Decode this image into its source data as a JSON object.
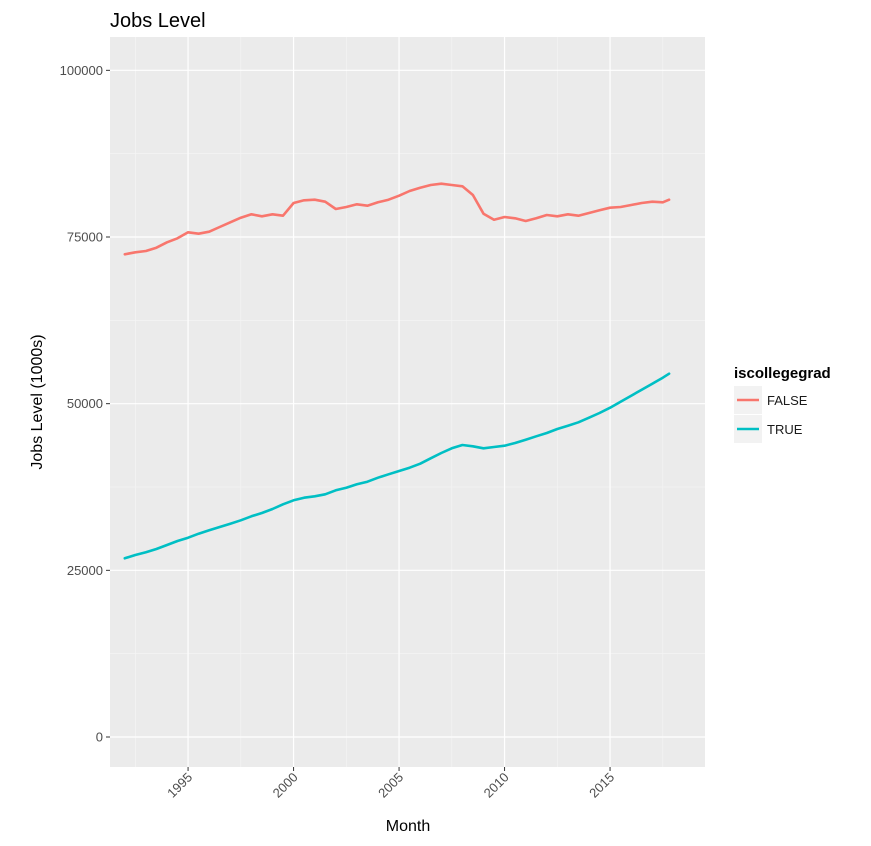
{
  "chart_data": {
    "type": "line",
    "title": "Jobs Level",
    "xlabel": "Month",
    "ylabel": "Jobs Level (1000s)",
    "xlim": [
      1991.3,
      2019.5
    ],
    "ylim": [
      -4500,
      105000
    ],
    "x_ticks": [
      1995,
      2000,
      2005,
      2010,
      2015
    ],
    "x_tick_labels": [
      "1995",
      "2000",
      "2005",
      "2010",
      "2015"
    ],
    "y_ticks": [
      0,
      25000,
      50000,
      75000,
      100000
    ],
    "y_tick_labels": [
      "0",
      "25000",
      "50000",
      "75000",
      "100000"
    ],
    "grid": true,
    "legend": {
      "title": "iscollegegrad",
      "position": "right"
    },
    "series": [
      {
        "name": "FALSE",
        "color": "#F8766D",
        "x": [
          1992.0,
          1992.5,
          1993.0,
          1993.5,
          1994.0,
          1994.5,
          1995.0,
          1995.5,
          1996.0,
          1996.5,
          1997.0,
          1997.5,
          1998.0,
          1998.5,
          1999.0,
          1999.5,
          2000.0,
          2000.5,
          2001.0,
          2001.5,
          2002.0,
          2002.5,
          2003.0,
          2003.5,
          2004.0,
          2004.5,
          2005.0,
          2005.5,
          2006.0,
          2006.5,
          2007.0,
          2007.5,
          2008.0,
          2008.5,
          2009.0,
          2009.5,
          2010.0,
          2010.5,
          2011.0,
          2011.5,
          2012.0,
          2012.5,
          2013.0,
          2013.5,
          2014.0,
          2014.5,
          2015.0,
          2015.5,
          2016.0,
          2016.5,
          2017.0,
          2017.5,
          2017.8
        ],
        "values": [
          72400,
          72700,
          72900,
          73400,
          74200,
          74800,
          75700,
          75500,
          75800,
          76500,
          77200,
          77900,
          78400,
          78100,
          78400,
          78200,
          80100,
          80500,
          80600,
          80300,
          79200,
          79500,
          79900,
          79700,
          80200,
          80600,
          81200,
          81900,
          82400,
          82800,
          83000,
          82800,
          82600,
          81300,
          78500,
          77600,
          78000,
          77800,
          77400,
          77800,
          78300,
          78100,
          78400,
          78200,
          78600,
          79000,
          79400,
          79500,
          79800,
          80100,
          80300,
          80200,
          80600
        ]
      },
      {
        "name": "TRUE",
        "color": "#00BFC4",
        "x": [
          1992.0,
          1992.5,
          1993.0,
          1993.5,
          1994.0,
          1994.5,
          1995.0,
          1995.5,
          1996.0,
          1996.5,
          1997.0,
          1997.5,
          1998.0,
          1998.5,
          1999.0,
          1999.5,
          2000.0,
          2000.5,
          2001.0,
          2001.5,
          2002.0,
          2002.5,
          2003.0,
          2003.5,
          2004.0,
          2004.5,
          2005.0,
          2005.5,
          2006.0,
          2006.5,
          2007.0,
          2007.5,
          2008.0,
          2008.5,
          2009.0,
          2009.5,
          2010.0,
          2010.5,
          2011.0,
          2011.5,
          2012.0,
          2012.5,
          2013.0,
          2013.5,
          2014.0,
          2014.5,
          2015.0,
          2015.5,
          2016.0,
          2016.5,
          2017.0,
          2017.5,
          2017.8
        ],
        "values": [
          26800,
          27300,
          27700,
          28200,
          28800,
          29400,
          29900,
          30500,
          31000,
          31500,
          32000,
          32500,
          33100,
          33600,
          34200,
          34900,
          35500,
          35900,
          36100,
          36400,
          37000,
          37400,
          37900,
          38300,
          38900,
          39400,
          39900,
          40400,
          41000,
          41800,
          42600,
          43300,
          43800,
          43600,
          43300,
          43500,
          43700,
          44100,
          44600,
          45100,
          45600,
          46200,
          46700,
          47200,
          47900,
          48600,
          49400,
          50300,
          51200,
          52100,
          53000,
          53900,
          54500
        ]
      }
    ]
  }
}
